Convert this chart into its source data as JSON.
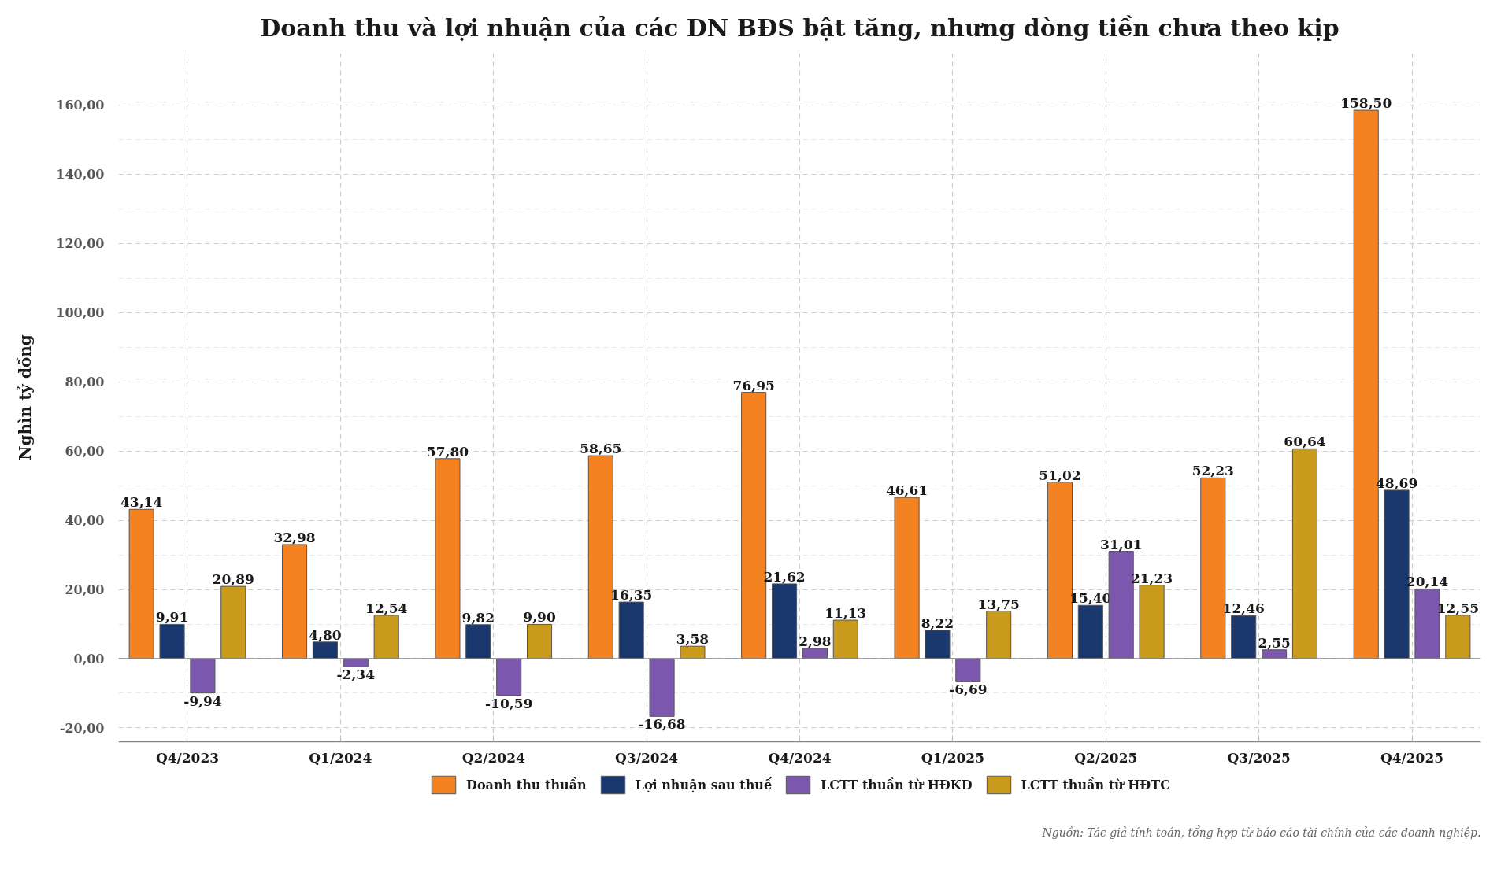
{
  "chart_data": {
    "type": "bar",
    "title": "Doanh thu và lợi nhuận của các DN BĐS bật tăng, nhưng dòng tiền chưa theo kịp",
    "ylabel": "Nghìn tỷ đồng",
    "categories": [
      "Q4/2023",
      "Q1/2024",
      "Q2/2024",
      "Q3/2024",
      "Q4/2024",
      "Q1/2025",
      "Q2/2025",
      "Q3/2025",
      "Q4/2025"
    ],
    "series": [
      {
        "name": "Doanh thu thuần",
        "color": "#f58220",
        "values": [
          43.14,
          32.98,
          57.8,
          58.65,
          76.95,
          46.61,
          51.02,
          52.23,
          158.5
        ],
        "value_labels": [
          "43,14",
          "32,98",
          "57,80",
          "58,65",
          "76,95",
          "46,61",
          "51,02",
          "52,23",
          "158,50"
        ]
      },
      {
        "name": "Lợi nhuận sau thuế",
        "color": "#1a386d",
        "values": [
          9.91,
          4.8,
          9.82,
          16.35,
          21.62,
          8.22,
          15.4,
          12.46,
          48.69
        ],
        "value_labels": [
          "9,91",
          "4,80",
          "9,82",
          "16,35",
          "21,62",
          "8,22",
          "15,40",
          "12,46",
          "48,69"
        ]
      },
      {
        "name": "LCTT thuần từ HĐKD",
        "color": "#7b58ad",
        "values": [
          -9.94,
          -2.34,
          -10.59,
          -16.68,
          2.98,
          -6.69,
          31.01,
          2.55,
          20.14
        ],
        "value_labels": [
          "-9,94",
          "-2,34",
          "-10,59",
          "-16,68",
          "2,98",
          "-6,69",
          "31,01",
          "2,55",
          "20,14"
        ]
      },
      {
        "name": "LCTT thuần từ HĐTC",
        "color": "#c99a1c",
        "values": [
          20.89,
          12.54,
          9.9,
          3.58,
          11.13,
          13.75,
          21.23,
          60.64,
          12.55
        ],
        "value_labels": [
          "20,89",
          "12,54",
          "9,90",
          "3,58",
          "11,13",
          "13,75",
          "21,23",
          "60,64",
          "12,55"
        ]
      }
    ],
    "ylim": [
      -24,
      175
    ],
    "yticks": [
      {
        "value": -20,
        "label": "-20,00"
      },
      {
        "value": 0,
        "label": "0,00"
      },
      {
        "value": 20,
        "label": "20,00"
      },
      {
        "value": 40,
        "label": "40,00"
      },
      {
        "value": 60,
        "label": "60,00"
      },
      {
        "value": 80,
        "label": "80,00"
      },
      {
        "value": 100,
        "label": "100,00"
      },
      {
        "value": 120,
        "label": "120,00"
      },
      {
        "value": 140,
        "label": "140,00"
      },
      {
        "value": 160,
        "label": "160,00"
      }
    ],
    "ref_lines": [
      {
        "axis": "y",
        "value": 0,
        "color": "#888888"
      }
    ],
    "grid": true,
    "legend": "bottom",
    "annotations": [
      "Nguồn: Tác giả tính toán, tổng hợp từ báo cáo tài chính của các doanh nghiệp."
    ]
  }
}
